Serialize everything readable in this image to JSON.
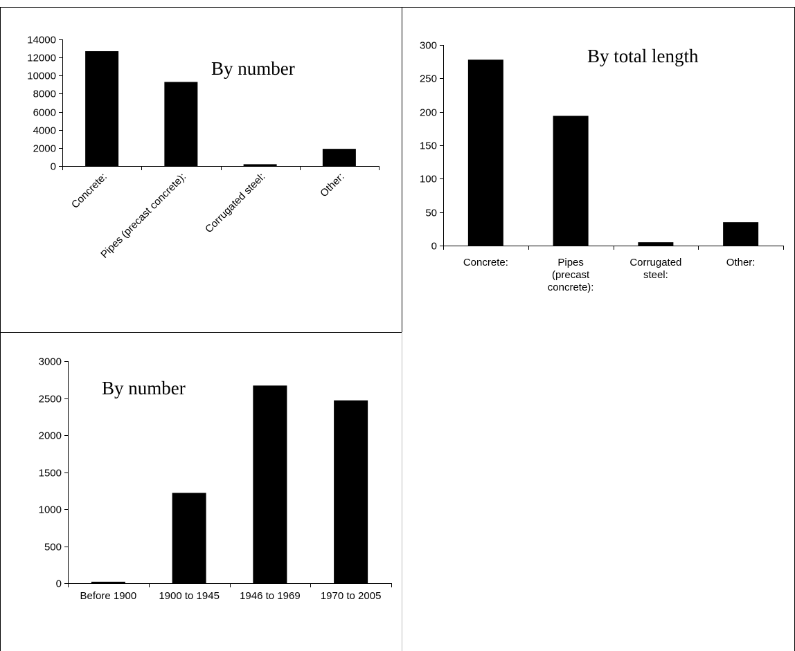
{
  "chart_data": [
    {
      "id": "chart1",
      "type": "bar",
      "title": "By number",
      "categories": [
        "Concrete:",
        "Pipes (precast concrete):",
        "Corrugated steel:",
        "Other:"
      ],
      "values": [
        12700,
        9300,
        200,
        1900
      ],
      "ylim": [
        0,
        14000
      ],
      "yticks": [
        0,
        2000,
        4000,
        6000,
        8000,
        10000,
        12000,
        14000
      ],
      "grid": false,
      "legend": "none",
      "bar_color": "#000000"
    },
    {
      "id": "chart2",
      "type": "bar",
      "title": "By total length",
      "categories": [
        "Concrete:",
        "Pipes (precast concrete):",
        "Corrugated steel:",
        "Other:"
      ],
      "values": [
        278,
        194,
        5,
        35
      ],
      "ylim": [
        0,
        300
      ],
      "yticks": [
        0,
        50,
        100,
        150,
        200,
        250,
        300
      ],
      "grid": false,
      "legend": "none",
      "bar_color": "#000000"
    },
    {
      "id": "chart3",
      "type": "bar",
      "title": "By number",
      "categories": [
        "Before 1900",
        "1900 to 1945",
        "1946 to 1969",
        "1970 to 2005"
      ],
      "values": [
        20,
        1220,
        2670,
        2470
      ],
      "ylim": [
        0,
        3000
      ],
      "yticks": [
        0,
        500,
        1000,
        1500,
        2000,
        2500,
        3000
      ],
      "grid": false,
      "legend": "none",
      "bar_color": "#000000"
    }
  ],
  "chart2_wrapped_labels": [
    [
      "Concrete:"
    ],
    [
      "Pipes",
      "(precast",
      "concrete):"
    ],
    [
      "Corrugated",
      "steel:"
    ],
    [
      "Other:"
    ]
  ]
}
